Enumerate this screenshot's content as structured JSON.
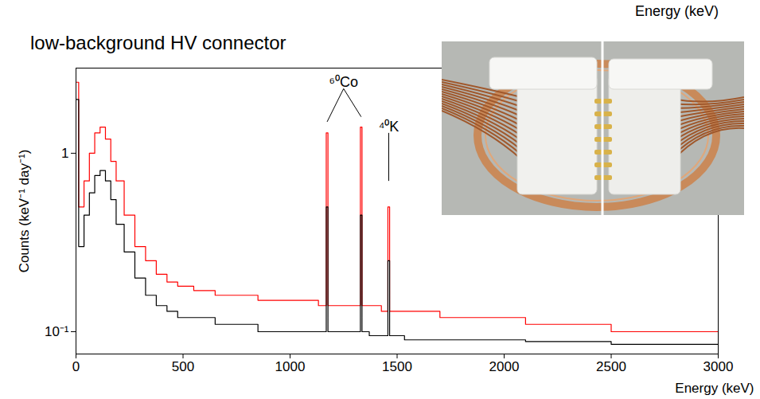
{
  "chart_data": {
    "type": "line",
    "top_label": "Energy (keV)",
    "title": "low-background HV connector",
    "x_label": "Energy (keV)",
    "y_label": "Counts (keV⁻¹ day⁻¹)",
    "log": "y",
    "grid": false,
    "line_style": "step",
    "xlim": [
      0,
      3000
    ],
    "xticks": [
      0,
      500,
      1000,
      1500,
      2000,
      2500,
      3000
    ],
    "ylim": [
      0.075,
      3
    ],
    "yticks": [
      {
        "value": 0.1,
        "label": "10⁻¹"
      },
      1
    ],
    "x": [
      0,
      25,
      50,
      75,
      100,
      125,
      150,
      175,
      200,
      250,
      300,
      350,
      400,
      450,
      500,
      600,
      700,
      800,
      900,
      1000,
      1100,
      1165,
      1173,
      1181,
      1250,
      1325,
      1332,
      1340,
      1400,
      1453,
      1461,
      1469,
      1600,
      1800,
      2000,
      2200,
      2400,
      2600,
      2800,
      3000
    ],
    "series": [
      {
        "color": "#ff0000",
        "values": [
          2.5,
          0.5,
          0.7,
          1.0,
          1.3,
          1.4,
          1.2,
          0.9,
          0.7,
          0.45,
          0.3,
          0.25,
          0.21,
          0.19,
          0.18,
          0.17,
          0.16,
          0.16,
          0.15,
          0.15,
          0.15,
          0.14,
          1.3,
          0.14,
          0.14,
          0.14,
          1.4,
          0.14,
          0.14,
          0.13,
          0.5,
          0.13,
          0.13,
          0.12,
          0.12,
          0.11,
          0.11,
          0.1,
          0.1,
          0.1
        ]
      },
      {
        "color": "#000000",
        "values": [
          2.0,
          0.3,
          0.45,
          0.6,
          0.75,
          0.8,
          0.7,
          0.55,
          0.4,
          0.28,
          0.2,
          0.16,
          0.14,
          0.13,
          0.12,
          0.12,
          0.11,
          0.11,
          0.1,
          0.1,
          0.1,
          0.1,
          0.5,
          0.1,
          0.1,
          0.1,
          0.45,
          0.1,
          0.095,
          0.095,
          0.25,
          0.095,
          0.09,
          0.09,
          0.09,
          0.088,
          0.088,
          0.085,
          0.085,
          0.085
        ]
      }
    ],
    "annotations": [
      {
        "text": "⁶⁰Co",
        "x": 1250,
        "y": 2.3,
        "targets": [
          [
            1173,
            1.5
          ],
          [
            1332,
            1.6
          ]
        ]
      },
      {
        "text": "⁴⁰K",
        "x": 1461,
        "y": 1.3,
        "targets": [
          [
            1461,
            0.7
          ]
        ]
      }
    ]
  }
}
